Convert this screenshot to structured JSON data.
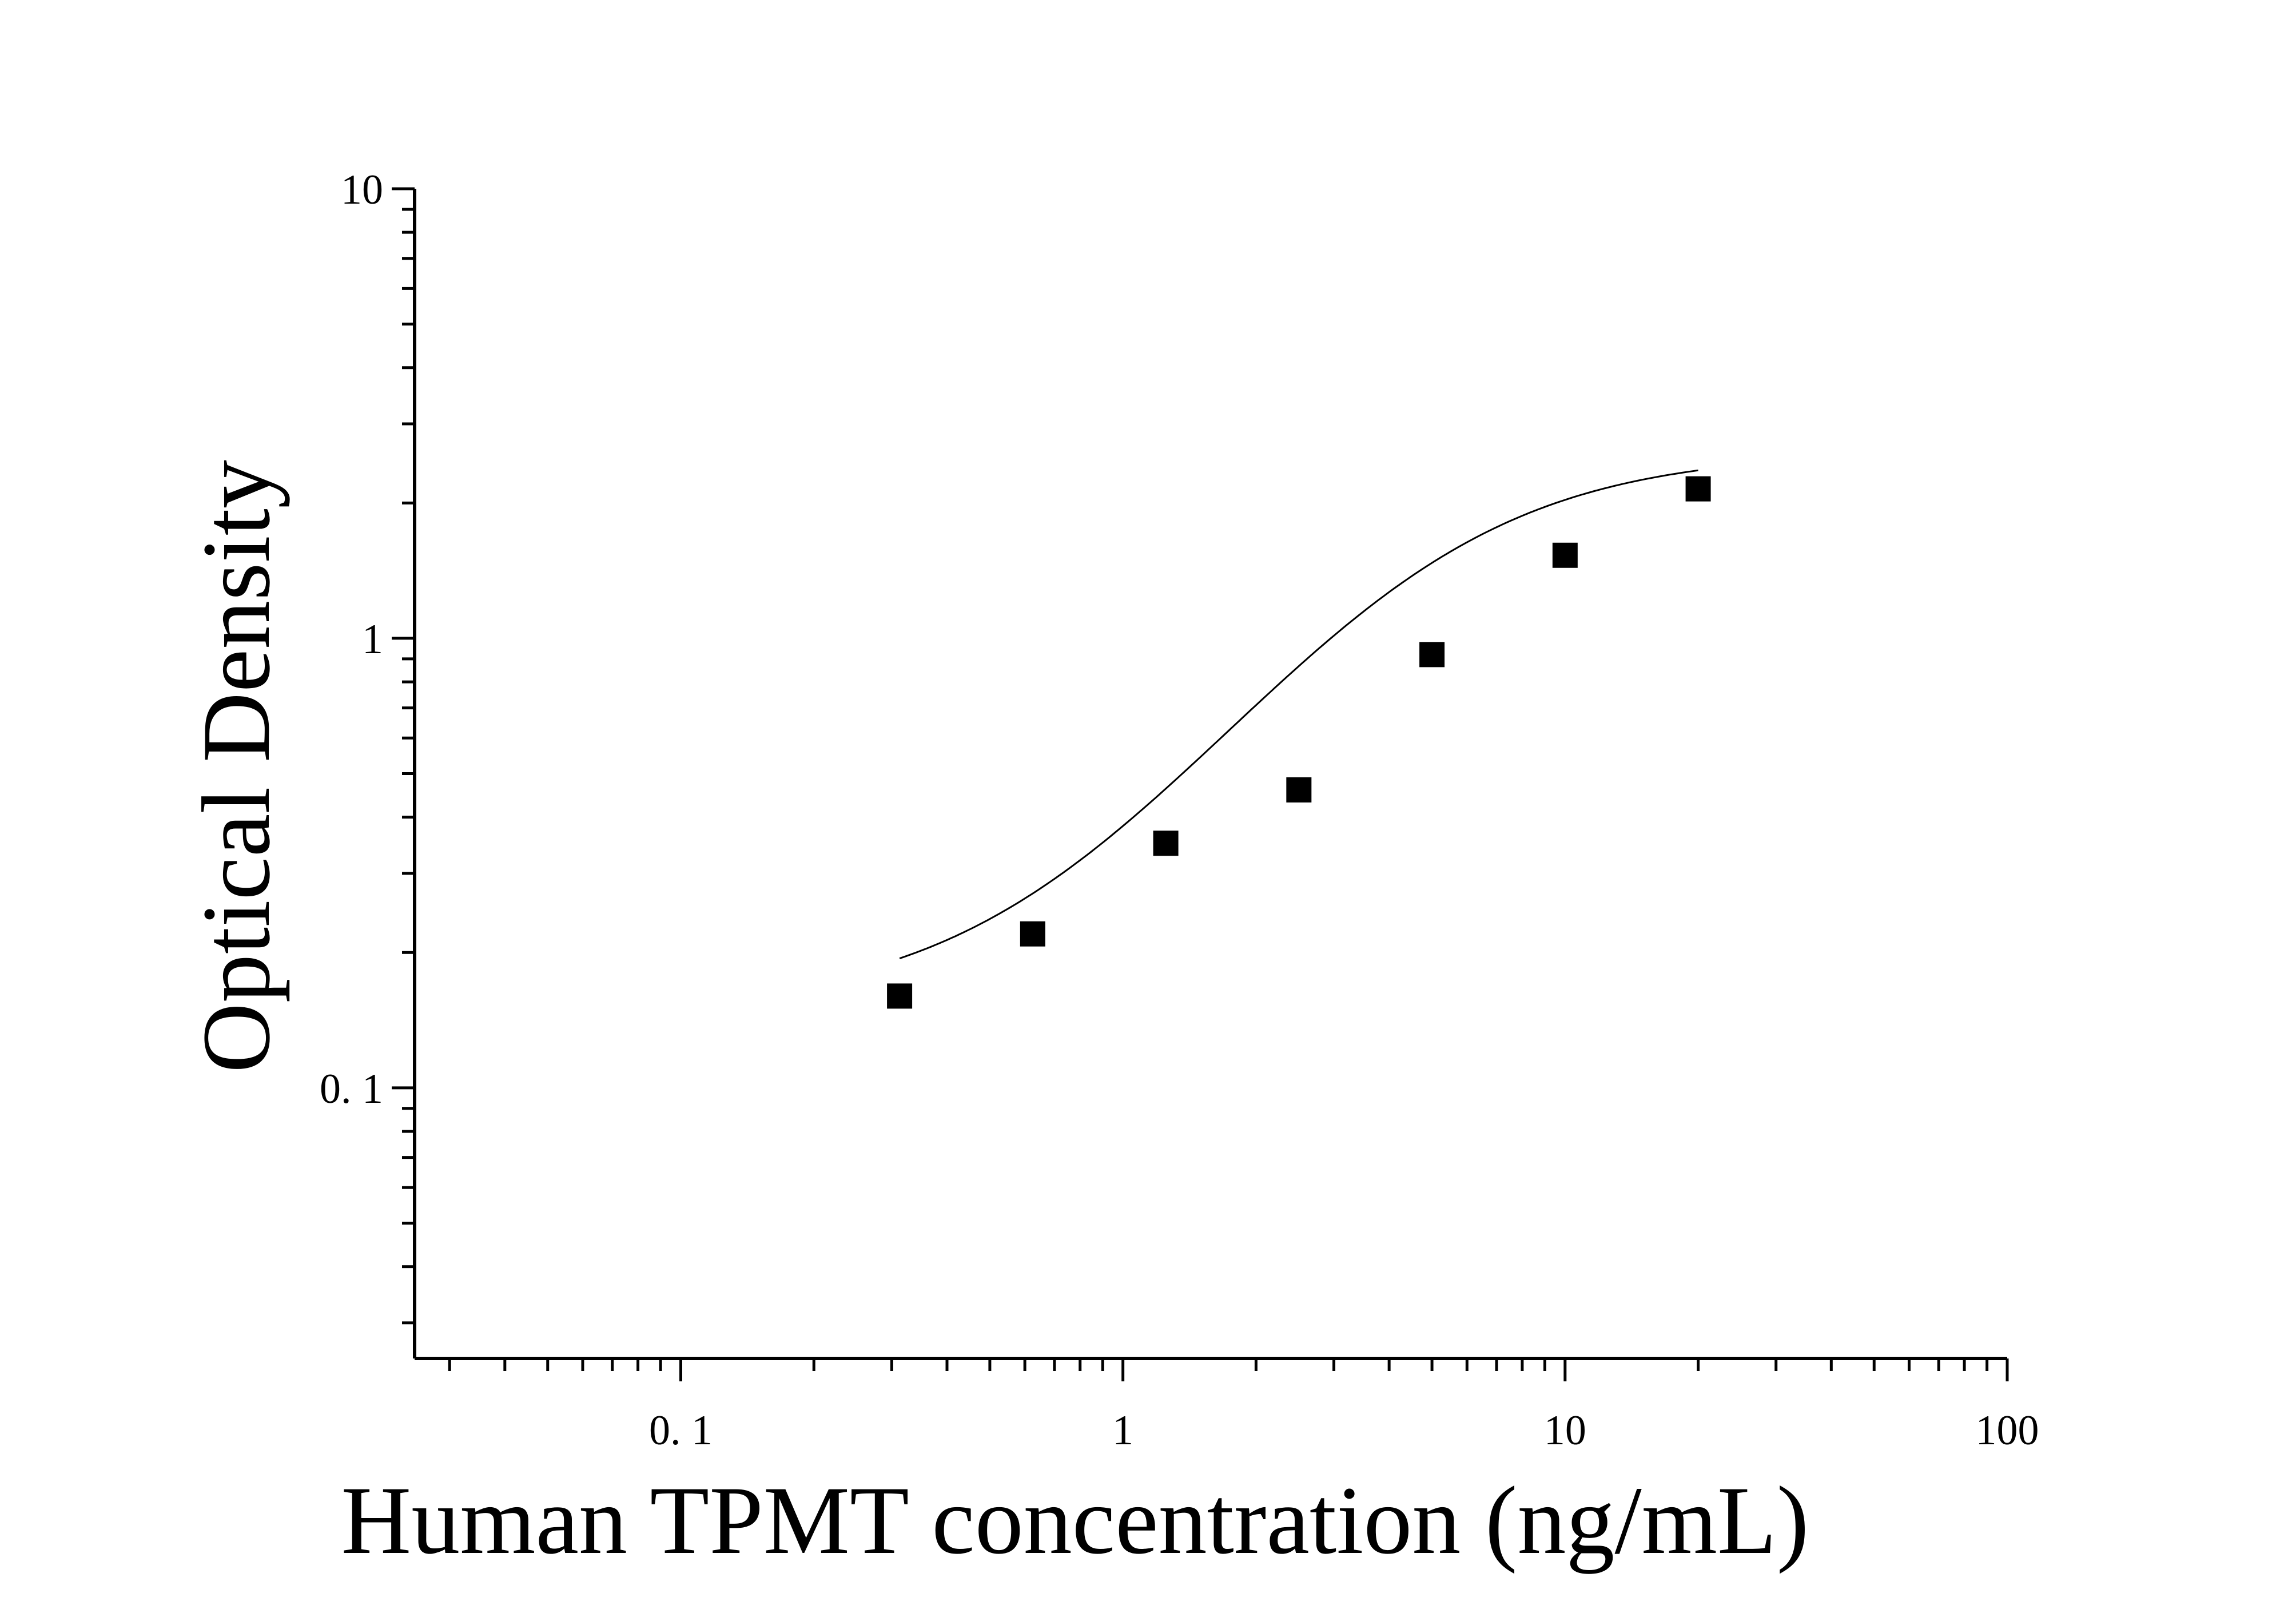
{
  "chart_data": {
    "type": "scatter",
    "xlabel": "Human TPMT concentration (ng/mL)",
    "ylabel": "Optical Density",
    "x_scale": "log",
    "y_scale": "log",
    "xlim": [
      0.025,
      100
    ],
    "ylim": [
      0.025,
      10
    ],
    "x_tick_labels": [
      "0. 1",
      "1",
      "10",
      "100"
    ],
    "y_tick_labels": [
      "0. 1",
      "1",
      "10"
    ],
    "series": [
      {
        "x": [
          0.3125,
          0.625,
          1.25,
          2.5,
          5,
          10,
          20
        ],
        "y": [
          0.16,
          0.22,
          0.35,
          0.46,
          0.92,
          1.53,
          2.15
        ]
      }
    ],
    "fit": {
      "model": "4PL",
      "x_range": [
        0.3125,
        20
      ],
      "A": 0.15,
      "D": 2.6,
      "C": 4.5,
      "B": 1.5
    },
    "grid": false,
    "marker": "square"
  }
}
